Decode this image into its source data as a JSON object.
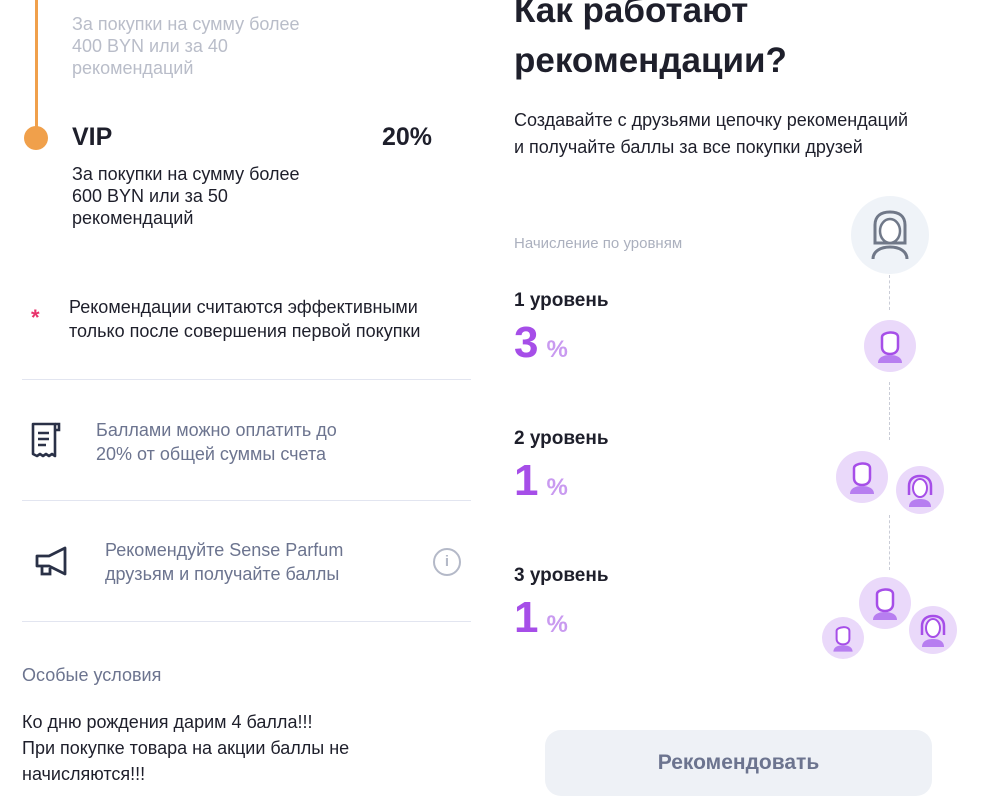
{
  "left": {
    "prev_tier_desc": [
      "За покупки на сумму более",
      "400 BYN или за 40",
      "рекомендаций"
    ],
    "tier": {
      "name": "VIP",
      "percent": "20%",
      "desc": [
        "За покупки на сумму более",
        "600 BYN или за 50",
        "рекомендаций"
      ]
    },
    "note": {
      "marker": "*",
      "lines": [
        "Рекомендации считаются эффективными",
        "только после совершения первой покупки"
      ]
    },
    "info_items": [
      {
        "icon": "receipt-icon",
        "lines": [
          "Баллами можно оплатить до",
          "20% от общей суммы счета"
        ]
      },
      {
        "icon": "megaphone-icon",
        "lines": [
          "Рекомендуйте Sense Parfum",
          "друзьям и получайте баллы"
        ],
        "action_icon": "info-icon"
      }
    ],
    "special": {
      "title": "Особые условия",
      "lines": [
        "Ко дню рождения дарим 4 балла!!!",
        "При покупке товара на акции баллы не",
        "начисляются!!!"
      ]
    }
  },
  "right": {
    "title": [
      "Как работают",
      "рекомендации?"
    ],
    "subtitle": [
      "Создавайте с друзьями цепочку рекомендаций",
      "и получайте баллы за все покупки друзей"
    ],
    "levels_caption": "Начисление по уровням",
    "levels": [
      {
        "label": "1 уровень",
        "value": "3",
        "unit": "%"
      },
      {
        "label": "2 уровень",
        "value": "1",
        "unit": "%"
      },
      {
        "label": "3 уровень",
        "value": "1",
        "unit": "%"
      }
    ],
    "button": "Рекомендовать"
  },
  "colors": {
    "accent_orange": "#f0a04b",
    "accent_purple": "#a64ee8",
    "asterisk": "#e8336b"
  }
}
